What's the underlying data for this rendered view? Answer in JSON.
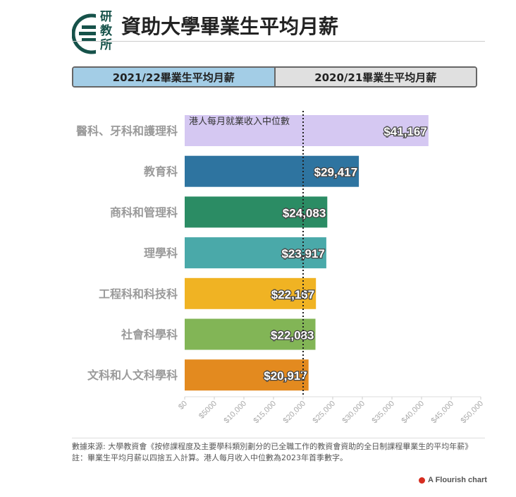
{
  "header": {
    "logo_chars": [
      "研",
      "教",
      "所"
    ],
    "title": "資助大學畢業生平均月薪"
  },
  "tabs": [
    {
      "label": "2021/22畢業生平均月薪",
      "active": true
    },
    {
      "label": "2020/21畢業生平均月薪",
      "active": false
    }
  ],
  "chart_data": {
    "type": "bar",
    "orientation": "horizontal",
    "categories": [
      "醫科、牙科和護理科",
      "教育科",
      "商科和管理科",
      "理學科",
      "工程科和科技科",
      "社會科學科",
      "文科和人文科學科"
    ],
    "values": [
      41167,
      29417,
      24083,
      23917,
      22167,
      22083,
      20917
    ],
    "value_labels": [
      "$41,167",
      "$29,417",
      "$24,083",
      "$23,917",
      "$22,167",
      "$22,083",
      "$20,917"
    ],
    "colors": [
      "#d5c8f2",
      "#2e74a0",
      "#2b8c64",
      "#4aa9a9",
      "#f0b323",
      "#82b556",
      "#e38a1f"
    ],
    "xlim": [
      0,
      50000
    ],
    "x_ticks": [
      0,
      5000,
      10000,
      15000,
      20000,
      25000,
      30000,
      35000,
      40000,
      45000,
      50000
    ],
    "x_tick_labels": [
      "$0",
      "$5000",
      "$10,000",
      "$15,000",
      "$20,000",
      "$25,000",
      "$30,000",
      "$35,000",
      "$40,000",
      "$45,000",
      "$50,000"
    ],
    "reference_line": {
      "value": 20000,
      "label": "港人每月就業收入中位數"
    },
    "grid": false
  },
  "footer": {
    "source": "數據來源: 大學教資會《按修課程度及主要學科類別劃分的已全職工作的教資會資助的全日制課程畢業生的平均年薪》",
    "note": "註：畢業生平均月薪以四捨五入計算。港人每月收入中位數為2023年首季數字。",
    "credit": "A Flourish chart"
  }
}
